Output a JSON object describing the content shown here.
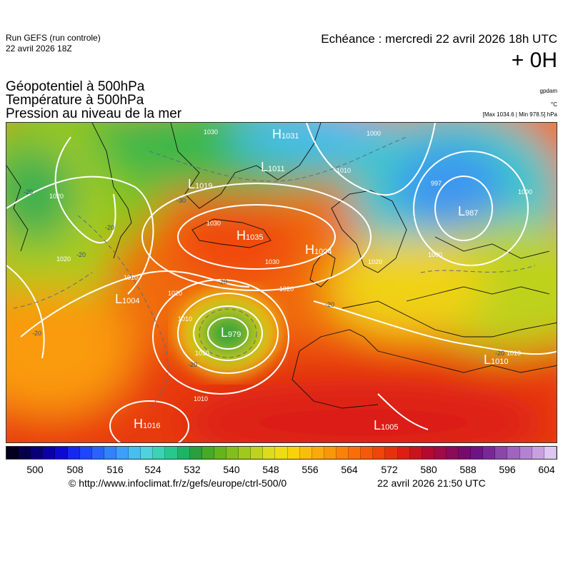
{
  "header": {
    "run_label": "Run GEFS (run controle)",
    "run_date": "22 avril 2026 18Z",
    "echeance": "Echéance : mercredi 22 avril 2026 18h UTC",
    "leadtime": "+ 0H",
    "field_geopotential": "Géopotentiel à 500hPa",
    "field_temperature": "Température à 500hPa",
    "field_pressure": "Pression au niveau de la mer",
    "unit_gpdam": "gpdam",
    "unit_celsius": "°C",
    "maxmin": "[Max 1034.6 | Min 978.5] hPa"
  },
  "colorbar": {
    "labels": [
      "500",
      "508",
      "516",
      "524",
      "532",
      "540",
      "548",
      "556",
      "564",
      "572",
      "580",
      "588",
      "596",
      "604"
    ],
    "colors": [
      "#02001e",
      "#06004a",
      "#080078",
      "#0a00a6",
      "#0c0ad2",
      "#1428f0",
      "#1e46fa",
      "#2864fa",
      "#3282fa",
      "#3ca0fa",
      "#46bef0",
      "#50d2dc",
      "#3cd2b4",
      "#28c88c",
      "#1eb464",
      "#28a03c",
      "#46aa28",
      "#64b41e",
      "#82be1e",
      "#a0c81e",
      "#bed21e",
      "#dcdc1e",
      "#f0dc14",
      "#fad20a",
      "#fabe0a",
      "#faaa0a",
      "#fa960a",
      "#fa820a",
      "#fa6e0a",
      "#f55a0a",
      "#f0460a",
      "#e6320a",
      "#dc1e14",
      "#c8141e",
      "#b40a32",
      "#a00a46",
      "#8c0a5a",
      "#780a6e",
      "#6e1482",
      "#782896",
      "#8c46aa",
      "#a064be",
      "#b482d2",
      "#c8a0e1",
      "#dcc8f0"
    ]
  },
  "pressure_centers": [
    {
      "type": "H",
      "value": "1031"
    },
    {
      "type": "L",
      "value": "1011"
    },
    {
      "type": "L",
      "value": "1019"
    },
    {
      "type": "H",
      "value": "1035"
    },
    {
      "type": "H",
      "value": "1004"
    },
    {
      "type": "L",
      "value": "1004"
    },
    {
      "type": "L",
      "value": "979"
    },
    {
      "type": "L",
      "value": "987"
    },
    {
      "type": "L",
      "value": "1010"
    },
    {
      "type": "H",
      "value": "1016"
    },
    {
      "type": "L",
      "value": "1005"
    }
  ],
  "isobar_labels": [
    "1030",
    "1000",
    "1010",
    "1020",
    "997",
    "1000",
    "1030",
    "1030",
    "1020",
    "1020",
    "1010",
    "1020",
    "1010",
    "1010",
    "1000",
    "1020",
    "1010",
    "1010"
  ],
  "temp_labels": [
    "-30",
    "-20",
    "-20",
    "-20",
    "-20",
    "-20",
    "-20",
    "-20",
    "-20"
  ],
  "footer": {
    "credit": "© http://www.infoclimat.fr/z/gefs/europe/ctrl-500/0",
    "generated": "22 avril 2026 21:50 UTC"
  }
}
